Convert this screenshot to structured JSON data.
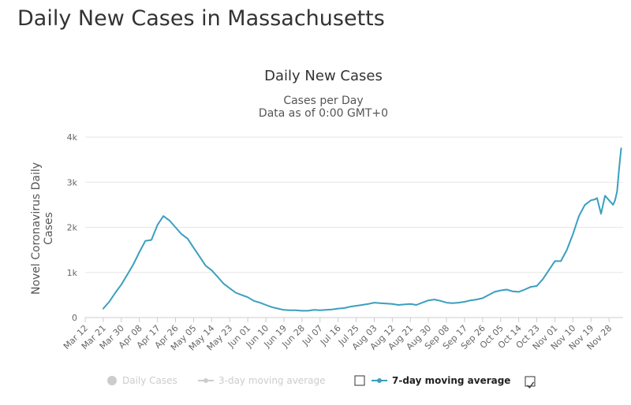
{
  "page": {
    "title": "Daily New Cases in Massachusetts"
  },
  "chart_data": {
    "type": "line",
    "title": "Daily New Cases",
    "subtitle": [
      "Cases per Day",
      "Data as of 0:00 GMT+0"
    ],
    "ylabel": [
      "Novel Coronavirus Daily",
      "Cases"
    ],
    "xlabel": "",
    "ylim": [
      0,
      4000
    ],
    "yticks": [
      0,
      1000,
      2000,
      3000,
      4000
    ],
    "ytick_labels": [
      "0",
      "1k",
      "2k",
      "3k",
      "4k"
    ],
    "xticks": [
      "Mar 12",
      "Mar 21",
      "Mar 30",
      "Apr 08",
      "Apr 17",
      "Apr 26",
      "May 05",
      "May 14",
      "May 23",
      "Jun 01",
      "Jun 10",
      "Jun 19",
      "Jun 28",
      "Jul 07",
      "Jul 16",
      "Jul 25",
      "Aug 03",
      "Aug 12",
      "Aug 21",
      "Aug 30",
      "Sep 08",
      "Sep 17",
      "Sep 26",
      "Oct 05",
      "Oct 14",
      "Oct 23",
      "Nov 01",
      "Nov 10",
      "Nov 19",
      "Nov 28"
    ],
    "grid": true,
    "line_color": "#3a9fbf",
    "series": [
      {
        "name": "7-day moving average",
        "x": [
          "Mar 21",
          "Mar 24",
          "Mar 27",
          "Mar 30",
          "Apr 02",
          "Apr 05",
          "Apr 08",
          "Apr 11",
          "Apr 14",
          "Apr 17",
          "Apr 20",
          "Apr 23",
          "Apr 26",
          "Apr 29",
          "May 02",
          "May 05",
          "May 08",
          "May 11",
          "May 14",
          "May 17",
          "May 20",
          "May 23",
          "May 26",
          "May 29",
          "Jun 01",
          "Jun 04",
          "Jun 07",
          "Jun 10",
          "Jun 13",
          "Jun 16",
          "Jun 19",
          "Jun 22",
          "Jun 25",
          "Jun 28",
          "Jul 01",
          "Jul 04",
          "Jul 07",
          "Jul 10",
          "Jul 13",
          "Jul 16",
          "Jul 19",
          "Jul 22",
          "Jul 25",
          "Jul 28",
          "Jul 31",
          "Aug 03",
          "Aug 06",
          "Aug 09",
          "Aug 12",
          "Aug 15",
          "Aug 18",
          "Aug 21",
          "Aug 24",
          "Aug 27",
          "Aug 30",
          "Sep 02",
          "Sep 05",
          "Sep 08",
          "Sep 11",
          "Sep 14",
          "Sep 17",
          "Sep 20",
          "Sep 23",
          "Sep 26",
          "Sep 29",
          "Oct 02",
          "Oct 05",
          "Oct 08",
          "Oct 11",
          "Oct 14",
          "Oct 17",
          "Oct 20",
          "Oct 23",
          "Oct 26",
          "Oct 29",
          "Nov 01",
          "Nov 04",
          "Nov 07",
          "Nov 10",
          "Nov 13",
          "Nov 16",
          "Nov 19",
          "Nov 21",
          "Nov 22",
          "Nov 24",
          "Nov 26",
          "Nov 28",
          "Nov 30",
          "Dec 01",
          "Dec 02",
          "Dec 03",
          "Dec 04"
        ],
        "values": [
          200,
          350,
          550,
          730,
          950,
          1180,
          1450,
          1700,
          1720,
          2050,
          2250,
          2150,
          2000,
          1850,
          1750,
          1550,
          1350,
          1150,
          1050,
          900,
          750,
          650,
          550,
          500,
          450,
          370,
          330,
          280,
          230,
          200,
          170,
          160,
          160,
          150,
          150,
          170,
          160,
          170,
          180,
          200,
          210,
          240,
          260,
          280,
          300,
          330,
          320,
          310,
          300,
          280,
          290,
          300,
          280,
          330,
          380,
          400,
          370,
          330,
          320,
          330,
          350,
          380,
          400,
          430,
          500,
          570,
          600,
          620,
          580,
          570,
          620,
          680,
          700,
          850,
          1050,
          1250,
          1250,
          1500,
          1850,
          2250,
          2500,
          2600,
          2620,
          2650,
          2300,
          2700,
          2600,
          2500,
          2600,
          2800,
          3300,
          3750
        ]
      }
    ],
    "legend": {
      "position": "bottom-center",
      "items": [
        {
          "label": "Daily Cases",
          "enabled": false,
          "checkbox": false
        },
        {
          "label": "3-day moving average",
          "enabled": false,
          "checkbox": false
        },
        {
          "label": "7-day moving average",
          "enabled": true,
          "checkbox": true
        }
      ]
    }
  }
}
